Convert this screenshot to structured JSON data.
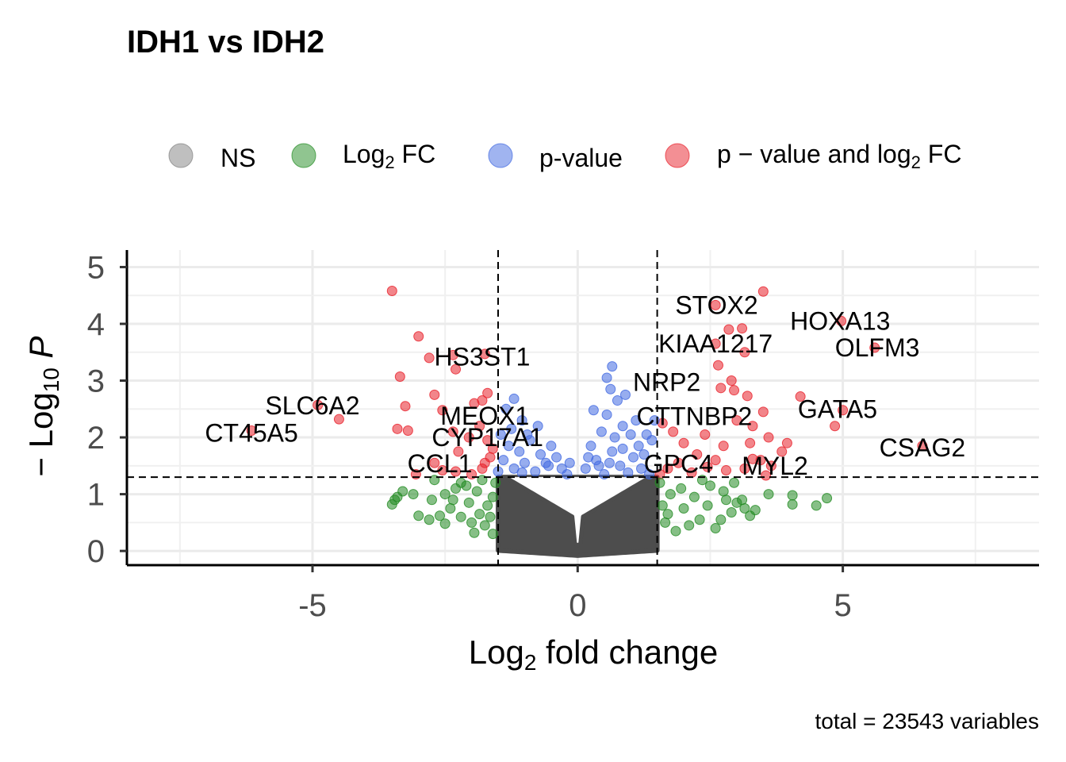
{
  "chart_data": {
    "type": "scatter",
    "title": "IDH1 vs IDH2",
    "caption": "total = 23543 variables",
    "xlabel": {
      "main": "Log",
      "sub": "2",
      "rest": "fold change"
    },
    "ylabel": {
      "prefix": "− Log",
      "sub": "10",
      "var": "P"
    },
    "xlim": [
      -8.5,
      8.7
    ],
    "ylim": [
      -0.25,
      5.3
    ],
    "x_ticks": [
      -5,
      0,
      5
    ],
    "x_tick_labels": [
      "-5",
      "0",
      "5"
    ],
    "y_ticks": [
      0,
      1,
      2,
      3,
      4,
      5
    ],
    "y_tick_labels": [
      "0",
      "1",
      "2",
      "3",
      "4",
      "5"
    ],
    "grid": true,
    "legend_position": "top",
    "legend": [
      {
        "key": "ns",
        "label": "NS",
        "color": "#808080"
      },
      {
        "key": "fc",
        "label_main": "Log",
        "label_sub": "2",
        "label_rest": "FC",
        "color": "#228b22"
      },
      {
        "key": "p",
        "label": "p-value",
        "color": "#4169e1"
      },
      {
        "key": "pfc",
        "label_main": "p − value  and  log",
        "label_sub": "2",
        "label_rest": "FC",
        "color": "#e8202a"
      }
    ],
    "cutoffs": {
      "log2fc": 1.5,
      "pvalue_neglog10": 1.3
    },
    "ns_cloud": {
      "color": "#4d4d4d",
      "x_range": [
        -1.5,
        1.5
      ],
      "y_max": 1.3
    },
    "series": [
      {
        "key": "pfc",
        "color": "#e8202a",
        "points": [
          [
            3.5,
            4.57
          ],
          [
            2.6,
            4.33
          ],
          [
            2.85,
            3.9
          ],
          [
            3.1,
            3.92
          ],
          [
            2.6,
            3.65
          ],
          [
            3.15,
            3.5
          ],
          [
            2.65,
            3.27
          ],
          [
            4.97,
            4.05
          ],
          [
            5.6,
            3.58
          ],
          [
            2.9,
            3.0
          ],
          [
            2.7,
            2.87
          ],
          [
            2.95,
            2.83
          ],
          [
            3.2,
            2.73
          ],
          [
            3.5,
            2.45
          ],
          [
            4.2,
            2.72
          ],
          [
            5.0,
            2.48
          ],
          [
            4.85,
            2.2
          ],
          [
            6.5,
            1.85
          ],
          [
            3.0,
            2.3
          ],
          [
            3.3,
            2.2
          ],
          [
            3.6,
            2.0
          ],
          [
            3.95,
            1.9
          ],
          [
            3.85,
            1.75
          ],
          [
            3.25,
            1.9
          ],
          [
            2.75,
            1.85
          ],
          [
            3.45,
            1.6
          ],
          [
            3.65,
            1.5
          ],
          [
            3.55,
            1.33
          ],
          [
            2.8,
            1.42
          ],
          [
            3.15,
            1.45
          ],
          [
            2.25,
            1.7
          ],
          [
            2.0,
            1.9
          ],
          [
            1.8,
            2.1
          ],
          [
            1.6,
            2.25
          ],
          [
            1.9,
            1.55
          ],
          [
            1.7,
            1.45
          ],
          [
            2.15,
            1.38
          ],
          [
            2.4,
            2.05
          ],
          [
            2.6,
            1.6
          ],
          [
            3.3,
            1.62
          ],
          [
            1.55,
            1.35
          ],
          [
            2.45,
            1.48
          ],
          [
            -3.5,
            4.58
          ],
          [
            -3.0,
            3.78
          ],
          [
            -2.8,
            3.4
          ],
          [
            -2.35,
            3.45
          ],
          [
            -1.75,
            3.47
          ],
          [
            -2.3,
            3.2
          ],
          [
            -3.35,
            3.07
          ],
          [
            -4.9,
            2.57
          ],
          [
            -4.5,
            2.32
          ],
          [
            -3.25,
            2.55
          ],
          [
            -2.7,
            2.75
          ],
          [
            -1.7,
            2.78
          ],
          [
            -1.8,
            2.65
          ],
          [
            -1.95,
            2.6
          ],
          [
            -2.55,
            2.48
          ],
          [
            -2.35,
            2.1
          ],
          [
            -3.4,
            2.15
          ],
          [
            -3.2,
            2.12
          ],
          [
            -6.15,
            2.12
          ],
          [
            -2.05,
            2.0
          ],
          [
            -1.85,
            2.2
          ],
          [
            -1.7,
            1.95
          ],
          [
            -2.25,
            1.75
          ],
          [
            -1.6,
            1.8
          ],
          [
            -1.75,
            1.55
          ],
          [
            -2.7,
            1.55
          ],
          [
            -2.55,
            1.42
          ],
          [
            -2.0,
            1.35
          ],
          [
            -3.05,
            1.35
          ],
          [
            -2.3,
            1.4
          ],
          [
            -1.8,
            1.45
          ],
          [
            -1.65,
            1.65
          ]
        ]
      },
      {
        "key": "p",
        "color": "#4169e1",
        "points": [
          [
            0.65,
            3.25
          ],
          [
            0.55,
            3.05
          ],
          [
            0.62,
            2.85
          ],
          [
            0.75,
            2.65
          ],
          [
            0.9,
            2.75
          ],
          [
            0.3,
            2.48
          ],
          [
            0.55,
            2.4
          ],
          [
            0.85,
            2.2
          ],
          [
            1.0,
            2.05
          ],
          [
            1.3,
            2.05
          ],
          [
            1.45,
            2.3
          ],
          [
            1.4,
            1.95
          ],
          [
            0.45,
            2.1
          ],
          [
            0.25,
            1.85
          ],
          [
            0.35,
            1.6
          ],
          [
            0.65,
            1.75
          ],
          [
            0.8,
            1.5
          ],
          [
            1.05,
            1.65
          ],
          [
            1.2,
            1.45
          ],
          [
            0.15,
            1.45
          ],
          [
            0.5,
            1.35
          ],
          [
            0.95,
            1.38
          ],
          [
            1.25,
            1.7
          ],
          [
            0.7,
            2.0
          ],
          [
            1.15,
            1.85
          ],
          [
            0.4,
            1.5
          ],
          [
            1.35,
            1.35
          ],
          [
            0.2,
            1.65
          ],
          [
            0.6,
            1.55
          ],
          [
            0.85,
            1.8
          ],
          [
            1.1,
            2.3
          ],
          [
            -1.2,
            2.68
          ],
          [
            -1.35,
            2.5
          ],
          [
            -1.05,
            2.3
          ],
          [
            -0.75,
            2.2
          ],
          [
            -1.25,
            2.15
          ],
          [
            -1.45,
            2.05
          ],
          [
            -0.5,
            1.85
          ],
          [
            -0.9,
            1.95
          ],
          [
            -1.1,
            1.75
          ],
          [
            -1.4,
            1.6
          ],
          [
            -0.6,
            1.55
          ],
          [
            -0.3,
            1.45
          ],
          [
            -0.8,
            1.4
          ],
          [
            -1.2,
            1.45
          ],
          [
            -1.0,
            1.55
          ],
          [
            -0.4,
            1.65
          ],
          [
            -0.2,
            1.35
          ],
          [
            -1.3,
            1.85
          ],
          [
            -0.7,
            1.7
          ],
          [
            -0.95,
            2.05
          ],
          [
            -0.55,
            1.5
          ],
          [
            -1.5,
            1.4
          ],
          [
            -0.15,
            1.55
          ],
          [
            -1.05,
            1.38
          ]
        ]
      },
      {
        "key": "fc",
        "color": "#228b22",
        "points": [
          [
            3.6,
            1.0
          ],
          [
            4.05,
            0.98
          ],
          [
            4.5,
            0.8
          ],
          [
            4.7,
            0.93
          ],
          [
            4.05,
            0.82
          ],
          [
            3.1,
            0.9
          ],
          [
            3.25,
            0.62
          ],
          [
            2.9,
            0.68
          ],
          [
            2.7,
            0.55
          ],
          [
            3.35,
            0.72
          ],
          [
            2.45,
            0.8
          ],
          [
            2.2,
            0.95
          ],
          [
            2.0,
            0.75
          ],
          [
            1.75,
            1.0
          ],
          [
            1.6,
            0.8
          ],
          [
            2.5,
            1.15
          ],
          [
            2.75,
            1.05
          ],
          [
            2.95,
            1.2
          ],
          [
            2.3,
            0.55
          ],
          [
            2.1,
            0.45
          ],
          [
            1.85,
            0.35
          ],
          [
            1.65,
            0.5
          ],
          [
            2.6,
            0.4
          ],
          [
            3.0,
            0.85
          ],
          [
            1.55,
            1.2
          ],
          [
            1.95,
            1.1
          ],
          [
            2.35,
            1.25
          ],
          [
            1.7,
            0.65
          ],
          [
            2.8,
            0.9
          ],
          [
            3.15,
            0.75
          ],
          [
            -3.5,
            0.82
          ],
          [
            -3.45,
            0.9
          ],
          [
            -3.4,
            0.95
          ],
          [
            -3.3,
            1.05
          ],
          [
            -3.1,
            1.0
          ],
          [
            -2.75,
            0.9
          ],
          [
            -2.5,
            1.0
          ],
          [
            -2.3,
            1.1
          ],
          [
            -2.1,
            1.15
          ],
          [
            -2.7,
            1.25
          ],
          [
            -2.4,
            0.75
          ],
          [
            -2.2,
            0.6
          ],
          [
            -2.5,
            0.48
          ],
          [
            -2.8,
            0.55
          ],
          [
            -2.0,
            0.5
          ],
          [
            -1.85,
            0.65
          ],
          [
            -1.7,
            0.8
          ],
          [
            -1.6,
            0.95
          ],
          [
            -1.9,
            1.05
          ],
          [
            -1.55,
            1.2
          ],
          [
            -2.2,
            1.2
          ],
          [
            -1.75,
            0.45
          ],
          [
            -1.95,
            0.32
          ],
          [
            -1.6,
            0.3
          ],
          [
            -2.6,
            0.62
          ],
          [
            -3.0,
            0.62
          ],
          [
            -2.35,
            0.9
          ],
          [
            -1.8,
            1.25
          ],
          [
            -2.05,
            0.85
          ],
          [
            -1.65,
            0.6
          ]
        ]
      }
    ],
    "labels": [
      {
        "text": "STOX2",
        "x": 2.62,
        "y": 4.33
      },
      {
        "text": "HOXA13",
        "x": 4.95,
        "y": 4.05
      },
      {
        "text": "KIAA1217",
        "x": 2.6,
        "y": 3.65
      },
      {
        "text": "OLFM3",
        "x": 5.65,
        "y": 3.58
      },
      {
        "text": "NRP2",
        "x": 1.68,
        "y": 2.97
      },
      {
        "text": "CTTNBP2",
        "x": 2.2,
        "y": 2.37
      },
      {
        "text": "GATA5",
        "x": 4.9,
        "y": 2.5
      },
      {
        "text": "CSAG2",
        "x": 6.5,
        "y": 1.82
      },
      {
        "text": "GPC4",
        "x": 1.9,
        "y": 1.53
      },
      {
        "text": "MYL2",
        "x": 3.72,
        "y": 1.5
      },
      {
        "text": "HS3ST1",
        "x": -1.8,
        "y": 3.42
      },
      {
        "text": "SLC6A2",
        "x": -5.0,
        "y": 2.56
      },
      {
        "text": "MEOX1",
        "x": -1.75,
        "y": 2.38
      },
      {
        "text": "CT45A5",
        "x": -6.15,
        "y": 2.08
      },
      {
        "text": "CYP17A1",
        "x": -1.7,
        "y": 2.0
      },
      {
        "text": "CCL1",
        "x": -2.6,
        "y": 1.54
      }
    ]
  }
}
